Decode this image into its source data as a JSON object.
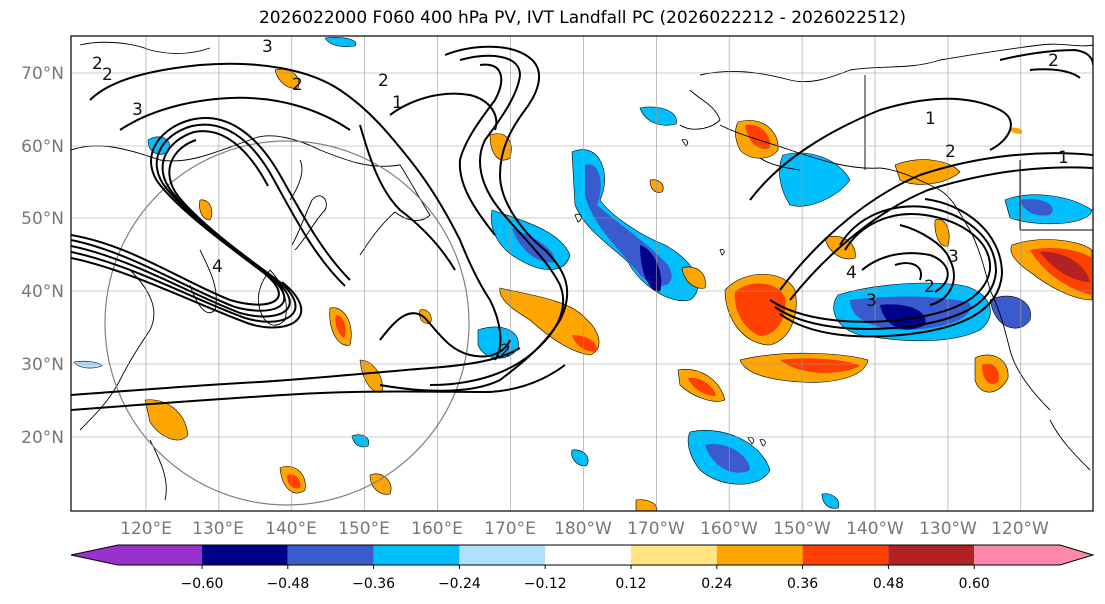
{
  "title": "2026022000 F060 400 hPa PV, IVT Landfall PC (2026022212 - 2026022512)",
  "map": {
    "lat_labels": [
      "70°N",
      "60°N",
      "50°N",
      "40°N",
      "30°N",
      "20°N"
    ],
    "lon_labels": [
      "120°E",
      "130°E",
      "140°E",
      "150°E",
      "160°E",
      "170°E",
      "180°W",
      "170°W",
      "160°W",
      "150°W",
      "140°W",
      "130°W",
      "120°W"
    ],
    "contour_labels": [
      "2",
      "2",
      "3",
      "2",
      "2",
      "1",
      "4",
      "3",
      "2",
      "1",
      "1",
      "2",
      "4",
      "3",
      "2",
      "3",
      "2"
    ]
  },
  "colorbar": {
    "ticks": [
      "−0.60",
      "−0.48",
      "−0.36",
      "−0.24",
      "−0.12",
      "0.12",
      "0.24",
      "0.36",
      "0.48",
      "0.60"
    ],
    "colors": [
      "#9932cc",
      "#00008b",
      "#3a5bcd",
      "#00bfff",
      "#b0e0ff",
      "#ffffff",
      "#ffe680",
      "#ffa500",
      "#ff4000",
      "#b22222",
      "#ff88aa"
    ]
  }
}
